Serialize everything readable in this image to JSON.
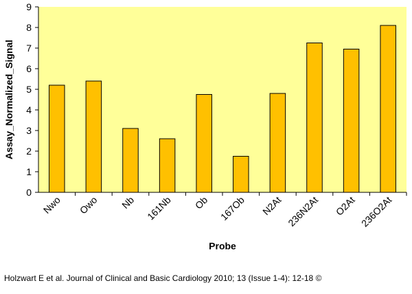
{
  "chart_data": {
    "type": "bar",
    "title": "",
    "xlabel": "Probe",
    "ylabel": "Assay_Normalized_Signal",
    "categories": [
      "Nwo",
      "Owo",
      "Nb",
      "161Nb",
      "Ob",
      "167Ob",
      "N2At",
      "236N2At",
      "O2At",
      "236O2At"
    ],
    "values": [
      5.2,
      5.4,
      3.1,
      2.6,
      4.75,
      1.75,
      4.8,
      7.25,
      6.95,
      8.1
    ],
    "ylim": [
      0,
      9
    ],
    "yticks": [
      "0",
      "1",
      "2",
      "3",
      "4",
      "5",
      "6",
      "7",
      "8",
      "9"
    ],
    "grid": false,
    "legend": "none",
    "colors": {
      "plot_background": "#ffff99",
      "bar_fill": "#ffc000",
      "bar_stroke": "#000000"
    }
  },
  "caption": "Holzwart E et al. Journal of Clinical and Basic Cardiology 2010; 13 (Issue 1-4): 12-18 ©"
}
